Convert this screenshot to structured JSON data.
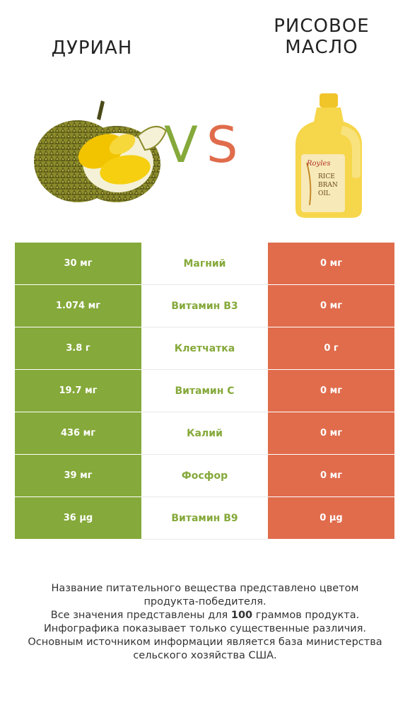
{
  "products": {
    "left": {
      "name": "ДУРИАН",
      "image_icon": "durian-fruit-photo"
    },
    "right": {
      "name": "РИСОВОЕ\nМАСЛО",
      "image_icon": "rice-bran-oil-bottle-photo",
      "label_lines": [
        "Royles",
        "RICE",
        "BRAN",
        "OIL"
      ]
    }
  },
  "vs": {
    "v": "V",
    "s": "S"
  },
  "colors": {
    "left": "#85a93a",
    "right": "#e06c4c",
    "mid_text_winner": "#85a93a",
    "background": "#ffffff"
  },
  "rows": [
    {
      "left": "30 мг",
      "label": "Магний",
      "right": "0 мг"
    },
    {
      "left": "1.074 мг",
      "label": "Витамин B3",
      "right": "0 мг"
    },
    {
      "left": "3.8 г",
      "label": "Клетчатка",
      "right": "0 г"
    },
    {
      "left": "19.7 мг",
      "label": "Витамин C",
      "right": "0 мг"
    },
    {
      "left": "436 мг",
      "label": "Калий",
      "right": "0 мг"
    },
    {
      "left": "39 мг",
      "label": "Фосфор",
      "right": "0 мг"
    },
    {
      "left": "36 µg",
      "label": "Витамин B9",
      "right": "0 µg"
    }
  ],
  "footer": {
    "line1": "Название питательного вещества представлено цветом",
    "line2": "продукта-победителя.",
    "line3_pre": "Все значения представлены для ",
    "line3_bold": "100",
    "line3_post": " граммов продукта.",
    "line4": "Инфографика показывает только существенные различия.",
    "line5": "Основным источником информации является база министерства",
    "line6": "сельского хозяйства США."
  }
}
